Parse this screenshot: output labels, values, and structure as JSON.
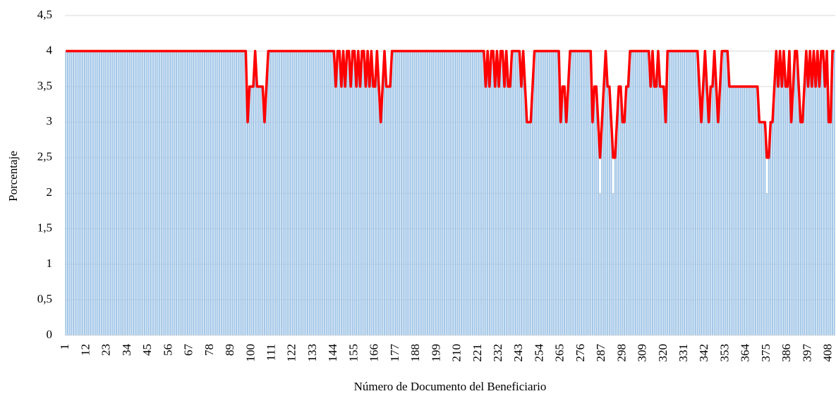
{
  "chart_data": {
    "type": "bar-line",
    "x_label": "Número de Documento del Beneficiario",
    "y_label": "Porcentaje",
    "ylim": [
      0,
      4.5
    ],
    "yticks": [
      0,
      {
        "value": 0.5,
        "label": "0,5"
      },
      1,
      {
        "value": 1.5,
        "label": "1,5"
      },
      2,
      {
        "value": 2.5,
        "label": "2,5"
      },
      3,
      {
        "value": 3.5,
        "label": "3,5"
      },
      4,
      {
        "value": 4.5,
        "label": "4,5"
      }
    ],
    "grid": true,
    "categories": [
      "1",
      null,
      null,
      null,
      null,
      null,
      null,
      null,
      null,
      null,
      null,
      "12",
      null,
      null,
      null,
      null,
      null,
      null,
      null,
      null,
      null,
      null,
      "23",
      null,
      null,
      null,
      null,
      null,
      null,
      null,
      null,
      null,
      null,
      "34",
      null,
      null,
      null,
      null,
      null,
      null,
      null,
      null,
      null,
      null,
      "45",
      null,
      null,
      null,
      null,
      null,
      null,
      null,
      null,
      null,
      null,
      "56",
      null,
      null,
      null,
      null,
      null,
      null,
      null,
      null,
      null,
      null,
      "67",
      null,
      null,
      null,
      null,
      null,
      null,
      null,
      null,
      null,
      null,
      "78",
      null,
      null,
      null,
      null,
      null,
      null,
      null,
      null,
      null,
      null,
      "89",
      null,
      null,
      null,
      null,
      null,
      null,
      null,
      null,
      null,
      null,
      "100",
      null,
      null,
      null,
      null,
      null,
      null,
      null,
      null,
      null,
      null,
      "111",
      null,
      null,
      null,
      null,
      null,
      null,
      null,
      null,
      null,
      null,
      "122",
      null,
      null,
      null,
      null,
      null,
      null,
      null,
      null,
      null,
      null,
      "133",
      null,
      null,
      null,
      null,
      null,
      null,
      null,
      null,
      null,
      null,
      "144",
      null,
      null,
      null,
      null,
      null,
      null,
      null,
      null,
      null,
      null,
      "155",
      null,
      null,
      null,
      null,
      null,
      null,
      null,
      null,
      null,
      null,
      "166",
      null,
      null,
      null,
      null,
      null,
      null,
      null,
      null,
      null,
      null,
      "177",
      null,
      null,
      null,
      null,
      null,
      null,
      null,
      null,
      null,
      null,
      "188",
      null,
      null,
      null,
      null,
      null,
      null,
      null,
      null,
      null,
      null,
      "199",
      null,
      null,
      null,
      null,
      null,
      null,
      null,
      null,
      null,
      null,
      "210",
      null,
      null,
      null,
      null,
      null,
      null,
      null,
      null,
      null,
      null,
      "221",
      null,
      null,
      null,
      null,
      null,
      null,
      null,
      null,
      null,
      null,
      "232",
      null,
      null,
      null,
      null,
      null,
      null,
      null,
      null,
      null,
      null,
      "243",
      null,
      null,
      null,
      null,
      null,
      null,
      null,
      null,
      null,
      null,
      "254",
      null,
      null,
      null,
      null,
      null,
      null,
      null,
      null,
      null,
      null,
      "265",
      null,
      null,
      null,
      null,
      null,
      null,
      null,
      null,
      null,
      null,
      "276",
      null,
      null,
      null,
      null,
      null,
      null,
      null,
      null,
      null,
      null,
      "287",
      null,
      null,
      null,
      null,
      null,
      null,
      null,
      null,
      null,
      null,
      "298",
      null,
      null,
      null,
      null,
      null,
      null,
      null,
      null,
      null,
      null,
      "309",
      null,
      null,
      null,
      null,
      null,
      null,
      null,
      null,
      null,
      null,
      "320",
      null,
      null,
      null,
      null,
      null,
      null,
      null,
      null,
      null,
      null,
      "331",
      null,
      null,
      null,
      null,
      null,
      null,
      null,
      null,
      null,
      null,
      "342",
      null,
      null,
      null,
      null,
      null,
      null,
      null,
      null,
      null,
      null,
      "353",
      null,
      null,
      null,
      null,
      null,
      null,
      null,
      null,
      null,
      null,
      "364",
      null,
      null,
      null,
      null,
      null,
      null,
      null,
      null,
      null,
      null,
      "375",
      null,
      null,
      null,
      null,
      null,
      null,
      null,
      null,
      null,
      null,
      "386",
      null,
      null,
      null,
      null,
      null,
      null,
      null,
      null,
      null,
      null,
      "397",
      null,
      null,
      null,
      null,
      null,
      null,
      null,
      null,
      null,
      null,
      "408",
      null,
      null,
      null
    ],
    "series": [
      {
        "type": "bar",
        "color": "#9dc3e6",
        "values": [
          4,
          4,
          4,
          4,
          4,
          4,
          4,
          4,
          4,
          4,
          4,
          4,
          4,
          4,
          4,
          4,
          4,
          4,
          4,
          4,
          4,
          4,
          4,
          4,
          4,
          4,
          4,
          4,
          4,
          4,
          4,
          4,
          4,
          4,
          4,
          4,
          4,
          4,
          4,
          4,
          4,
          4,
          4,
          4,
          4,
          4,
          4,
          4,
          4,
          4,
          4,
          4,
          4,
          4,
          4,
          4,
          4,
          4,
          4,
          4,
          4,
          4,
          4,
          4,
          4,
          4,
          4,
          4,
          4,
          4,
          4,
          4,
          4,
          4,
          4,
          4,
          4,
          4,
          4,
          4,
          4,
          4,
          4,
          4,
          4,
          4,
          4,
          4,
          4,
          4,
          4,
          4,
          4,
          4,
          4,
          4,
          4,
          3,
          3.5,
          3.5,
          3.5,
          4,
          3.5,
          3.5,
          3.5,
          3.5,
          3,
          3.5,
          4,
          4,
          4,
          4,
          4,
          4,
          4,
          4,
          4,
          4,
          4,
          4,
          4,
          4,
          4,
          4,
          4,
          4,
          4,
          4,
          4,
          4,
          4,
          4,
          4,
          4,
          4,
          4,
          4,
          4,
          4,
          4,
          4,
          4,
          4,
          4,
          3.5,
          4,
          4,
          3.5,
          4,
          3.5,
          4,
          4,
          3.5,
          4,
          4,
          3.5,
          4,
          3.5,
          4,
          4,
          3.5,
          4,
          3.5,
          4,
          3.5,
          3.5,
          4,
          3.5,
          3,
          3.5,
          4,
          3.5,
          3.5,
          3.5,
          4,
          4,
          4,
          4,
          4,
          4,
          4,
          4,
          4,
          4,
          4,
          4,
          4,
          4,
          4,
          4,
          4,
          4,
          4,
          4,
          4,
          4,
          4,
          4,
          4,
          4,
          4,
          4,
          4,
          4,
          4,
          4,
          4,
          4,
          4,
          4,
          4,
          4,
          4,
          4,
          4,
          4,
          4,
          4,
          4,
          4,
          4,
          4,
          4,
          4,
          3.5,
          4,
          3.5,
          4,
          4,
          3.5,
          4,
          3.5,
          4,
          4,
          3.5,
          4,
          3.5,
          3.5,
          4,
          4,
          4,
          4,
          4,
          3.5,
          4,
          3.5,
          3,
          3,
          3,
          3.5,
          4,
          4,
          4,
          4,
          4,
          4,
          4,
          4,
          4,
          4,
          4,
          4,
          4,
          4,
          3,
          3.5,
          3.5,
          3,
          3.5,
          4,
          4,
          4,
          4,
          4,
          4,
          4,
          4,
          4,
          4,
          4,
          4,
          3,
          3.5,
          3.5,
          3,
          2,
          3,
          3.5,
          4,
          3.5,
          3.5,
          3,
          2,
          2.5,
          3,
          3.5,
          3.5,
          3,
          3,
          3.5,
          3.5,
          4,
          4,
          4,
          4,
          4,
          4,
          4,
          4,
          4,
          4,
          4,
          3.5,
          4,
          3.5,
          3.5,
          4,
          3.5,
          3.5,
          3.5,
          3,
          4,
          4,
          4,
          4,
          4,
          4,
          4,
          4,
          4,
          4,
          4,
          4,
          4,
          4,
          4,
          4,
          4,
          3.5,
          3,
          3.5,
          4,
          3.5,
          3,
          3.5,
          3.5,
          4,
          3.5,
          3,
          3.5,
          4,
          4,
          4,
          4,
          3.5,
          3.5,
          3.5,
          3.5,
          3.5,
          3.5,
          3.5,
          3.5,
          3.5,
          3.5,
          3.5,
          3.5,
          3.5,
          3.5,
          3.5,
          3.5,
          3,
          3,
          3,
          3,
          2,
          2.5,
          3,
          3,
          3.5,
          4,
          3.5,
          4,
          3.5,
          4,
          3.5,
          3.5,
          4,
          3,
          3.5,
          4,
          4,
          3.5,
          3,
          3,
          3.5,
          4,
          3.5,
          4,
          3.5,
          4,
          3.5,
          4,
          3.5,
          4,
          4,
          3.5,
          4,
          3,
          3,
          4,
          4
        ]
      },
      {
        "type": "line",
        "color": "#ff0000",
        "values": [
          4,
          4,
          4,
          4,
          4,
          4,
          4,
          4,
          4,
          4,
          4,
          4,
          4,
          4,
          4,
          4,
          4,
          4,
          4,
          4,
          4,
          4,
          4,
          4,
          4,
          4,
          4,
          4,
          4,
          4,
          4,
          4,
          4,
          4,
          4,
          4,
          4,
          4,
          4,
          4,
          4,
          4,
          4,
          4,
          4,
          4,
          4,
          4,
          4,
          4,
          4,
          4,
          4,
          4,
          4,
          4,
          4,
          4,
          4,
          4,
          4,
          4,
          4,
          4,
          4,
          4,
          4,
          4,
          4,
          4,
          4,
          4,
          4,
          4,
          4,
          4,
          4,
          4,
          4,
          4,
          4,
          4,
          4,
          4,
          4,
          4,
          4,
          4,
          4,
          4,
          4,
          4,
          4,
          4,
          4,
          4,
          4,
          3,
          3.5,
          3.5,
          3.5,
          4,
          3.5,
          3.5,
          3.5,
          3.5,
          3,
          3.5,
          4,
          4,
          4,
          4,
          4,
          4,
          4,
          4,
          4,
          4,
          4,
          4,
          4,
          4,
          4,
          4,
          4,
          4,
          4,
          4,
          4,
          4,
          4,
          4,
          4,
          4,
          4,
          4,
          4,
          4,
          4,
          4,
          4,
          4,
          4,
          4,
          3.5,
          4,
          4,
          3.5,
          4,
          3.5,
          4,
          4,
          3.5,
          4,
          4,
          3.5,
          4,
          3.5,
          4,
          4,
          3.5,
          4,
          3.5,
          4,
          3.5,
          3.5,
          4,
          3.5,
          3,
          3.5,
          4,
          3.5,
          3.5,
          3.5,
          4,
          4,
          4,
          4,
          4,
          4,
          4,
          4,
          4,
          4,
          4,
          4,
          4,
          4,
          4,
          4,
          4,
          4,
          4,
          4,
          4,
          4,
          4,
          4,
          4,
          4,
          4,
          4,
          4,
          4,
          4,
          4,
          4,
          4,
          4,
          4,
          4,
          4,
          4,
          4,
          4,
          4,
          4,
          4,
          4,
          4,
          4,
          4,
          4,
          4,
          3.5,
          4,
          3.5,
          4,
          4,
          3.5,
          4,
          3.5,
          4,
          4,
          3.5,
          4,
          3.5,
          3.5,
          4,
          4,
          4,
          4,
          4,
          3.5,
          4,
          3.5,
          3,
          3,
          3,
          3.5,
          4,
          4,
          4,
          4,
          4,
          4,
          4,
          4,
          4,
          4,
          4,
          4,
          4,
          4,
          3,
          3.5,
          3.5,
          3,
          3.5,
          4,
          4,
          4,
          4,
          4,
          4,
          4,
          4,
          4,
          4,
          4,
          4,
          3,
          3.5,
          3.5,
          3,
          2.5,
          3,
          3.5,
          4,
          3.5,
          3.5,
          3,
          2.5,
          2.5,
          3,
          3.5,
          3.5,
          3,
          3,
          3.5,
          3.5,
          4,
          4,
          4,
          4,
          4,
          4,
          4,
          4,
          4,
          4,
          4,
          3.5,
          4,
          3.5,
          3.5,
          4,
          3.5,
          3.5,
          3.5,
          3,
          4,
          4,
          4,
          4,
          4,
          4,
          4,
          4,
          4,
          4,
          4,
          4,
          4,
          4,
          4,
          4,
          4,
          3.5,
          3,
          3.5,
          4,
          3.5,
          3,
          3.5,
          3.5,
          4,
          3.5,
          3,
          3.5,
          4,
          4,
          4,
          4,
          3.5,
          3.5,
          3.5,
          3.5,
          3.5,
          3.5,
          3.5,
          3.5,
          3.5,
          3.5,
          3.5,
          3.5,
          3.5,
          3.5,
          3.5,
          3.5,
          3,
          3,
          3,
          3,
          2.5,
          2.5,
          3,
          3,
          3.5,
          4,
          3.5,
          4,
          3.5,
          4,
          3.5,
          3.5,
          4,
          3,
          3.5,
          4,
          4,
          3.5,
          3,
          3,
          3.5,
          4,
          3.5,
          4,
          3.5,
          4,
          3.5,
          4,
          3.5,
          4,
          4,
          3.5,
          4,
          3,
          3,
          4,
          4
        ]
      }
    ]
  }
}
